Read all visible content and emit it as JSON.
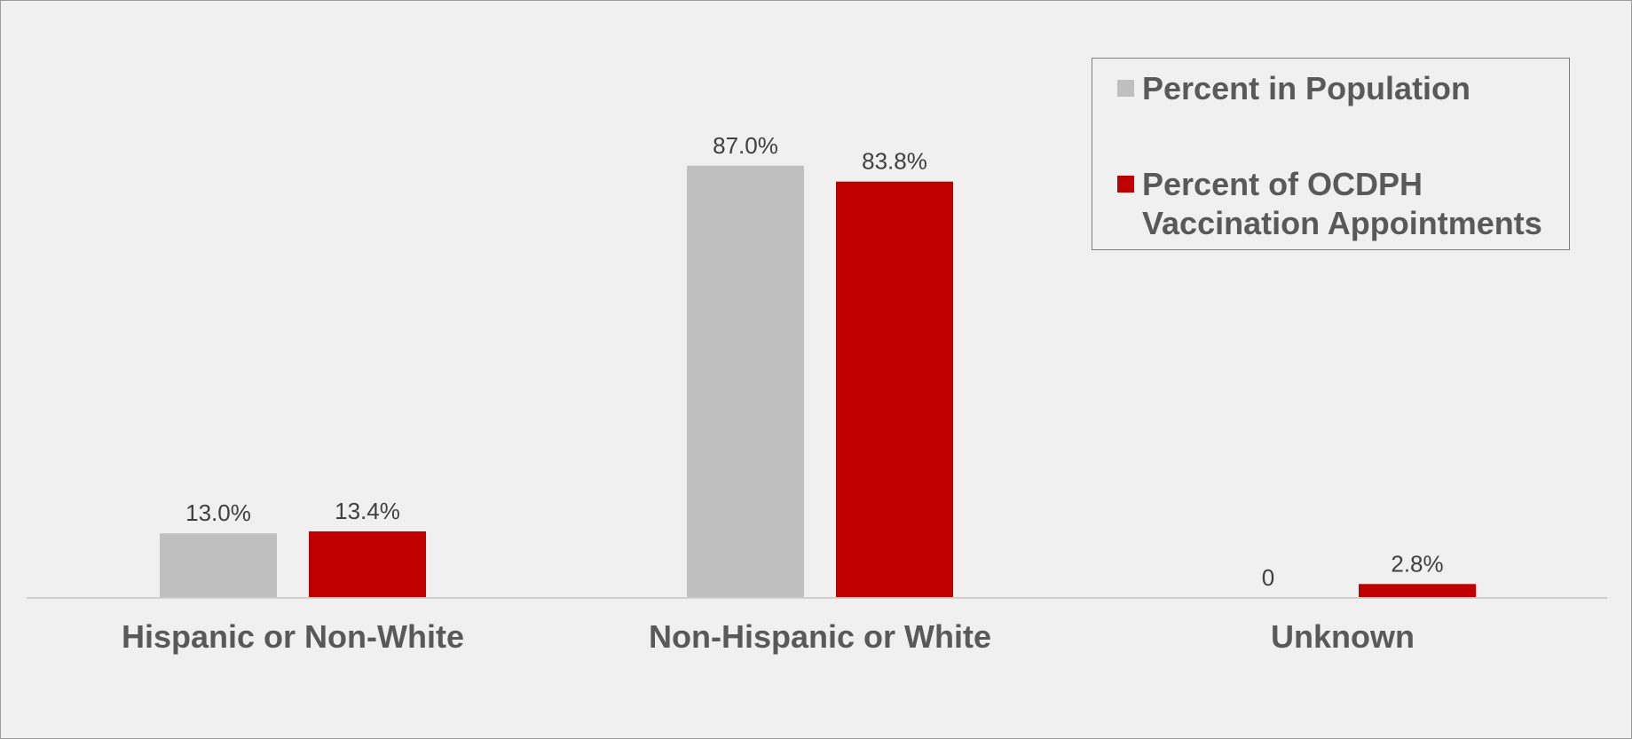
{
  "chart_data": {
    "type": "bar",
    "categories": [
      "Hispanic or Non-White",
      "Non-Hispanic or White",
      "Unknown"
    ],
    "series": [
      {
        "name": "Percent in Population",
        "values": [
          13.0,
          87.0,
          0
        ],
        "labels": [
          "13.0%",
          "87.0%",
          "0"
        ],
        "color": "#bfbfbf"
      },
      {
        "name": "Percent of OCDPH Vaccination Appointments",
        "values": [
          13.4,
          83.8,
          2.8
        ],
        "labels": [
          "13.4%",
          "83.8%",
          "2.8%"
        ],
        "color": "#c00000"
      }
    ],
    "ylim": [
      0,
      100
    ],
    "grid": false,
    "legend_position": "top-right"
  }
}
